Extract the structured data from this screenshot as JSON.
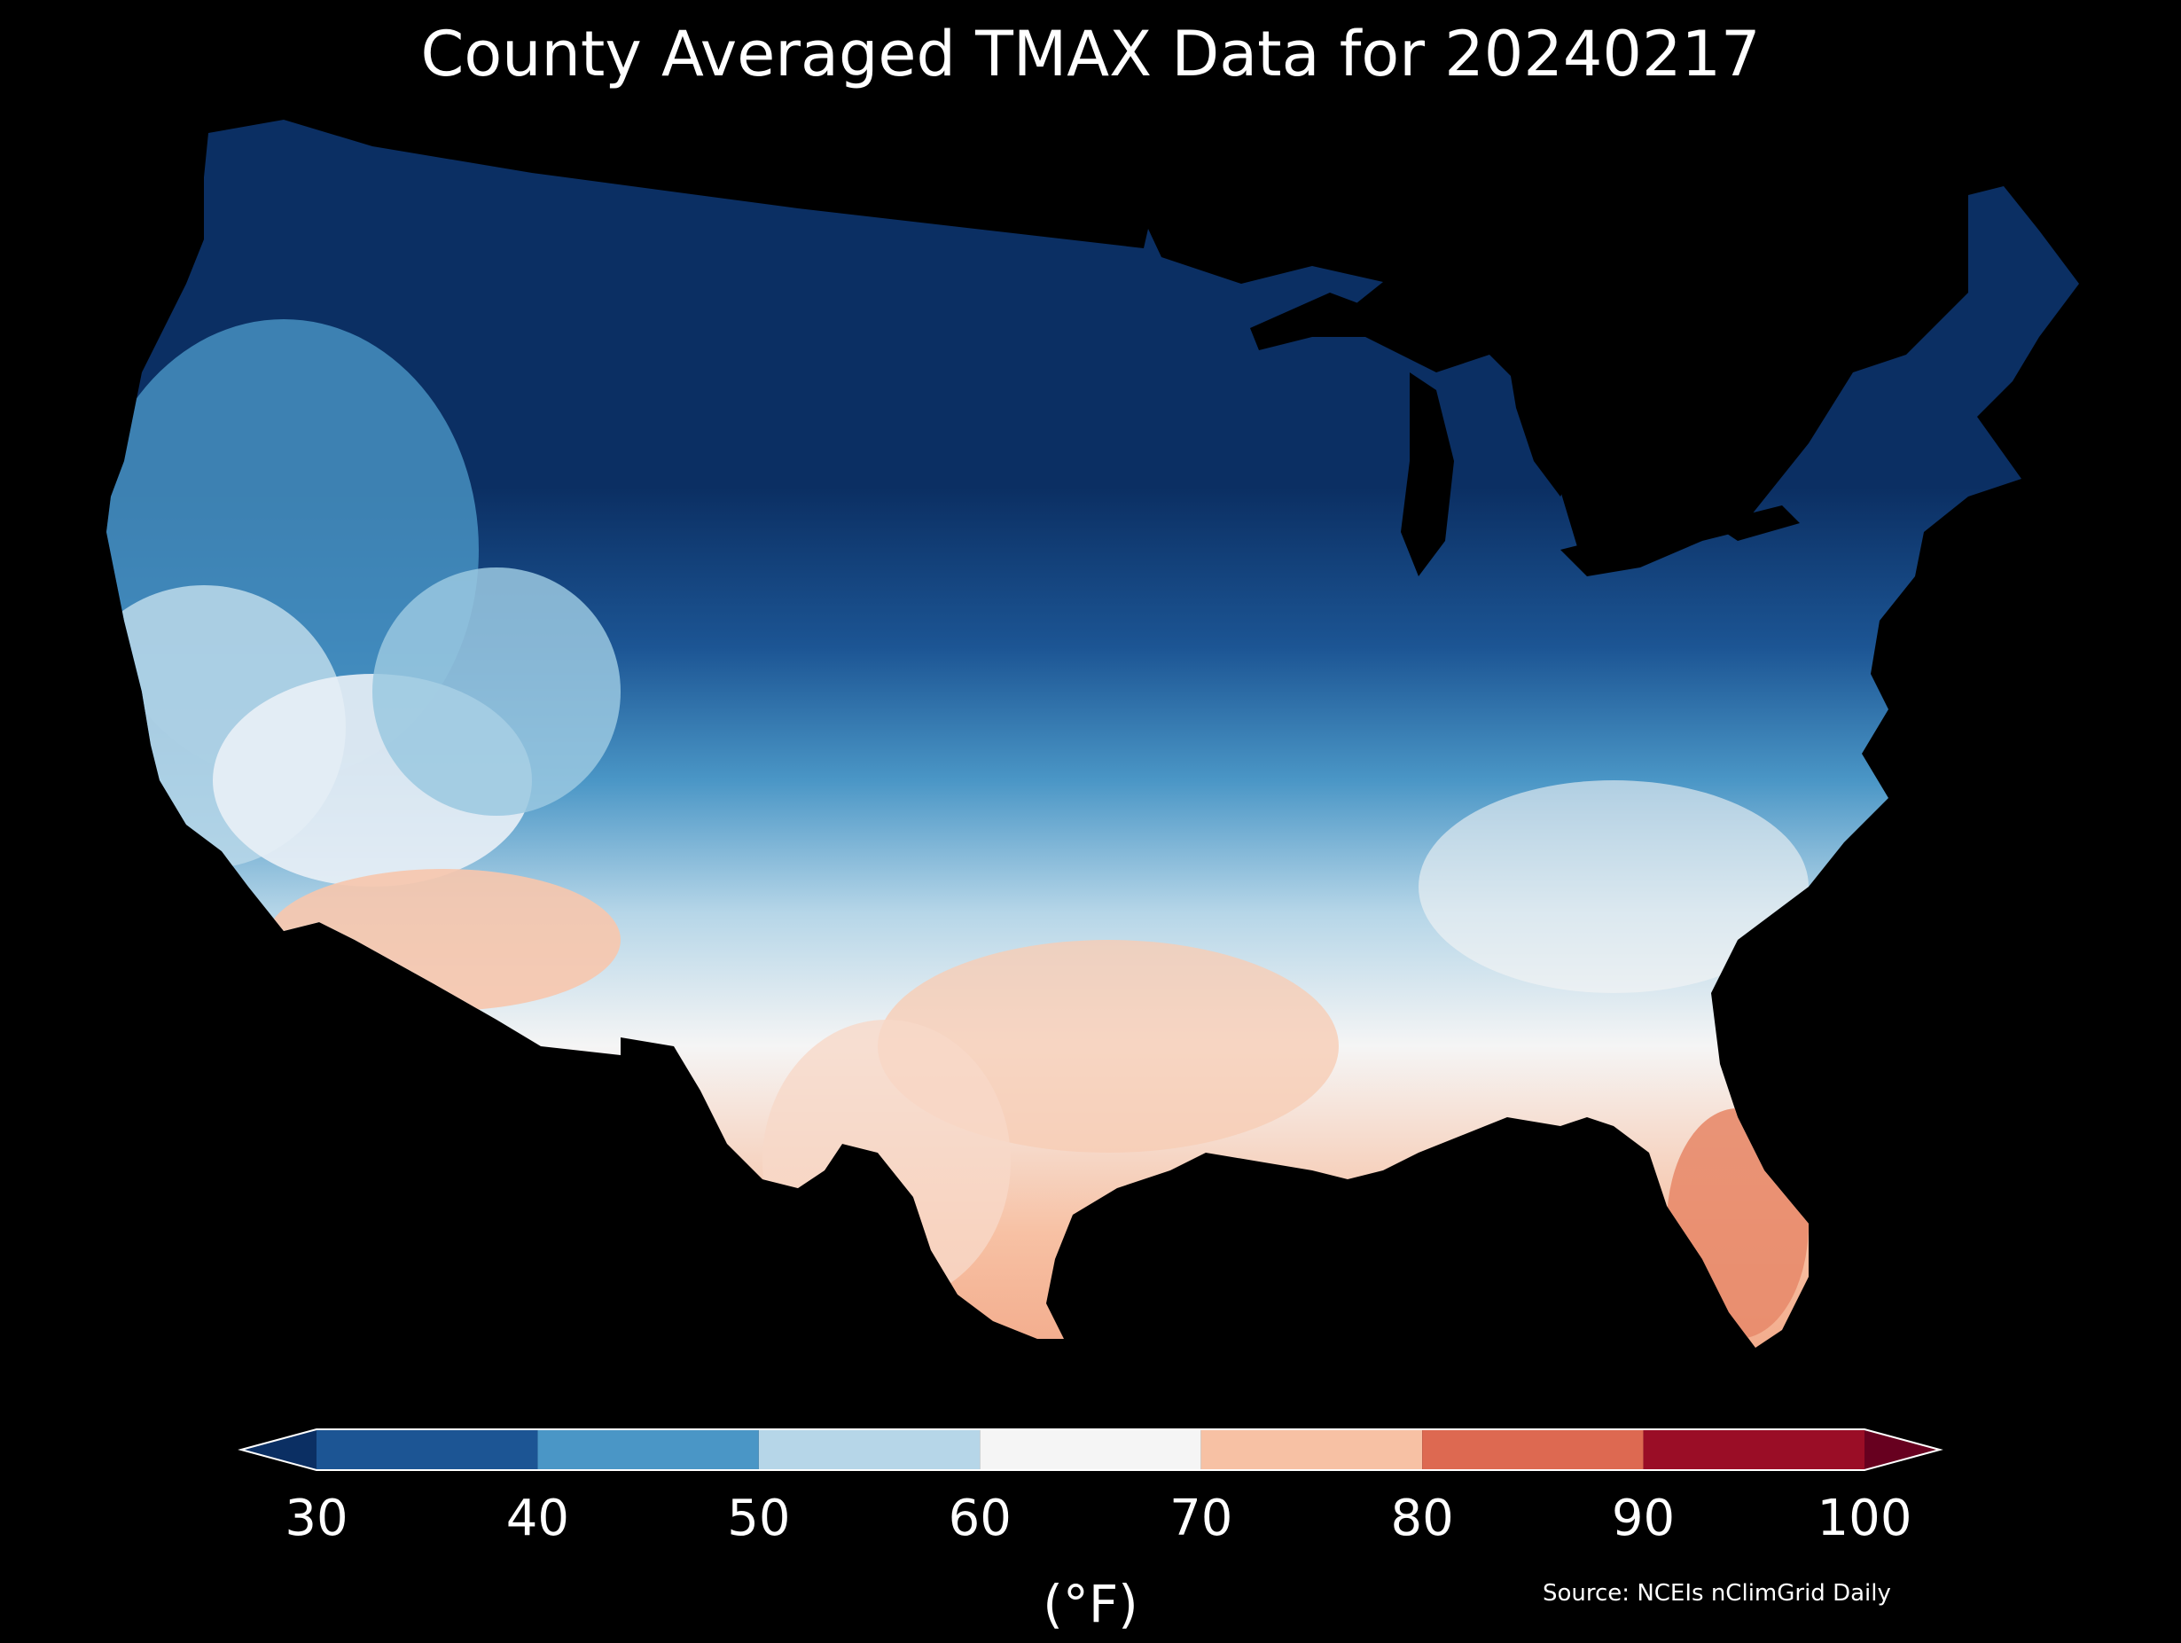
{
  "title": "County Averaged TMAX Data for 20240217",
  "colorbar": {
    "ticks": [
      "30",
      "40",
      "50",
      "60",
      "70",
      "80",
      "90",
      "100"
    ],
    "unit": "(°F)",
    "bins": [
      {
        "from": "<30",
        "color": "#0b2f63"
      },
      {
        "from": 30,
        "to": 40,
        "color": "#1c5594"
      },
      {
        "from": 40,
        "to": 50,
        "color": "#4a96c6"
      },
      {
        "from": 50,
        "to": 60,
        "color": "#b6d6e8"
      },
      {
        "from": 60,
        "to": 70,
        "color": "#f5f5f5"
      },
      {
        "from": 70,
        "to": 80,
        "color": "#f7c1a4"
      },
      {
        "from": 80,
        "to": 90,
        "color": "#dd6951"
      },
      {
        "from": 90,
        "to": 100,
        "color": "#9a0d26"
      },
      {
        "from": ">100",
        "color": "#67001f"
      }
    ]
  },
  "source": "Source: NCEIs nClimGrid Daily",
  "map": {
    "region": "Contiguous United States",
    "pattern": "coldest (<40°F) across northern plains, upper midwest and northeast; 40-60°F in west and mid-south; 60-80°F across Texas, the Gulf coast, Arizona and Florida"
  }
}
